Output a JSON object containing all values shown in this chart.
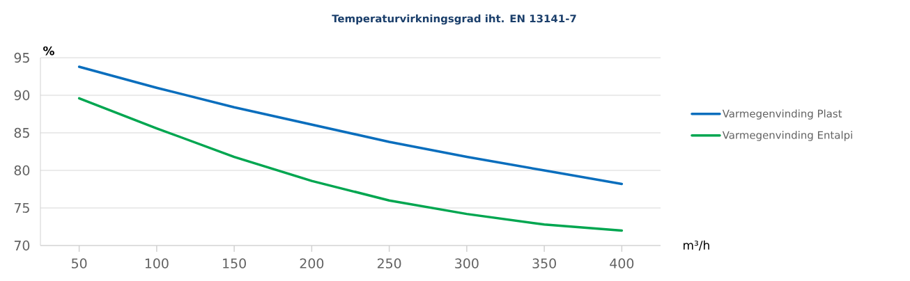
{
  "chart_data": {
    "type": "line",
    "title": "Temperaturvirkningsgrad iht. EN 13141-7",
    "xlabel": "m³/h",
    "ylabel": "%",
    "x": [
      50,
      100,
      150,
      200,
      250,
      300,
      350,
      400
    ],
    "series": [
      {
        "name": "Varmegenvinding Plast",
        "color": "#0a6ebd",
        "values": [
          93.8,
          91.0,
          88.4,
          86.1,
          83.8,
          81.8,
          80.0,
          78.2
        ]
      },
      {
        "name": "Varmegenvinding Entalpi",
        "color": "#00a650",
        "values": [
          89.6,
          85.6,
          81.8,
          78.6,
          76.0,
          74.2,
          72.8,
          72.0
        ]
      }
    ],
    "xlim": [
      25,
      425
    ],
    "ylim": [
      70,
      95
    ],
    "xticks": [
      50,
      100,
      150,
      200,
      250,
      300,
      350,
      400
    ],
    "yticks": [
      70,
      75,
      80,
      85,
      90,
      95
    ],
    "grid": "y",
    "legend": "right",
    "marker": "none",
    "line_style": "solid"
  }
}
